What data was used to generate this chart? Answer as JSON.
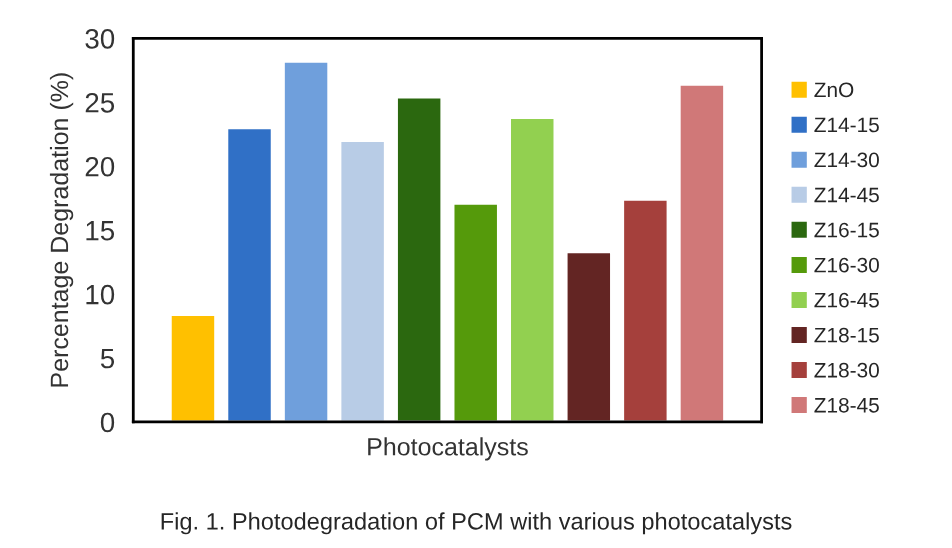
{
  "chart_data": {
    "type": "bar",
    "ylabel": "Percentage Degradation (%)",
    "xlabel": "Photocatalysts",
    "categories": [
      null
    ],
    "series": [
      {
        "name": "ZnO",
        "color": "#ffc000",
        "values": [
          8.4
        ]
      },
      {
        "name": "Z14-15",
        "color": "#3070c6",
        "values": [
          23.0
        ]
      },
      {
        "name": "Z14-30",
        "color": "#6f9fdc",
        "values": [
          28.2
        ]
      },
      {
        "name": "Z14-45",
        "color": "#b8cce6",
        "values": [
          22.0
        ]
      },
      {
        "name": "Z16-15",
        "color": "#2b680f",
        "values": [
          25.4
        ]
      },
      {
        "name": "Z16-30",
        "color": "#559a0b",
        "values": [
          17.1
        ]
      },
      {
        "name": "Z16-45",
        "color": "#92d050",
        "values": [
          23.8
        ]
      },
      {
        "name": "Z18-15",
        "color": "#632523",
        "values": [
          13.3
        ]
      },
      {
        "name": "Z18-30",
        "color": "#a5403c",
        "values": [
          17.4
        ]
      },
      {
        "name": "Z18-45",
        "color": "#d07878",
        "values": [
          26.4
        ]
      }
    ],
    "ylim": [
      0,
      30
    ],
    "yticks": [
      0,
      5,
      10,
      15,
      20,
      25,
      30
    ],
    "grid": false,
    "legend": "right",
    "annotations": [
      "Fig. 1. Photodegradation of PCM with various photocatalysts"
    ]
  }
}
